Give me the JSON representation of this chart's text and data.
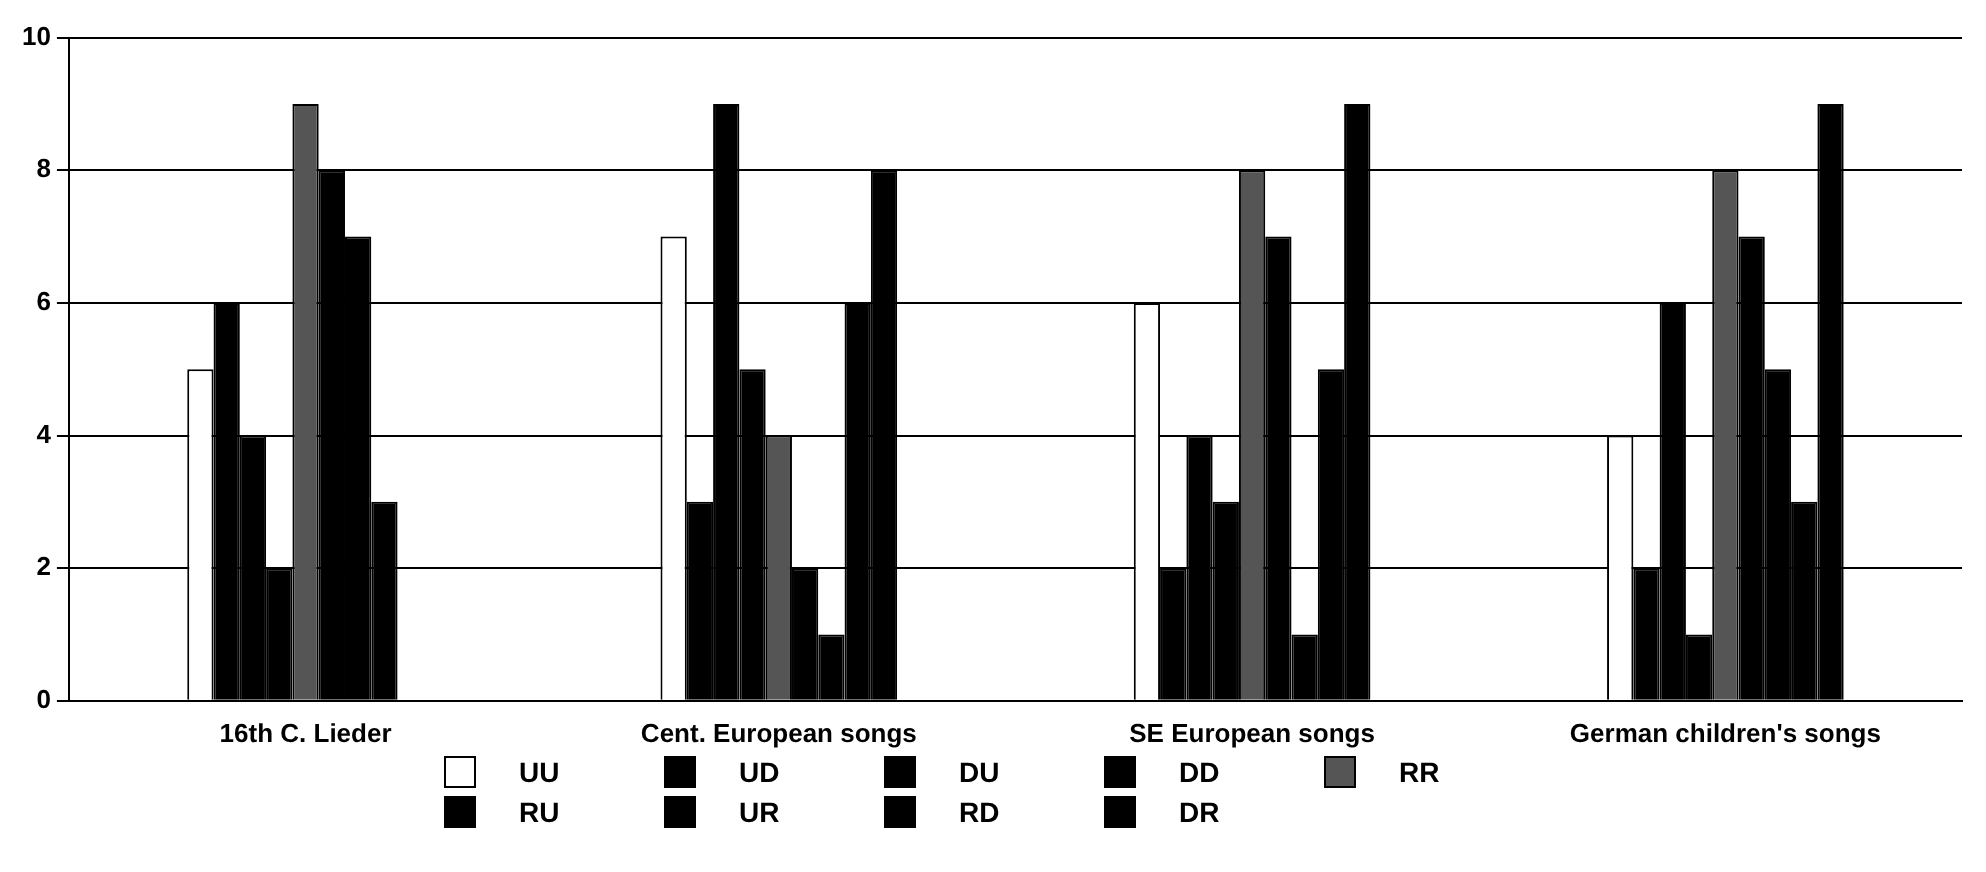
{
  "chart_data": {
    "type": "bar",
    "categories": [
      "16th C. Lieder",
      "Cent. European songs",
      "SE European songs",
      "German children's songs"
    ],
    "series": [
      {
        "name": "UU",
        "color": "#ffffff",
        "values": [
          5,
          7,
          6,
          4
        ]
      },
      {
        "name": "UD",
        "color": "#000000",
        "values": [
          6,
          3,
          2,
          2
        ]
      },
      {
        "name": "DU",
        "color": "#000000",
        "values": [
          4,
          9,
          4,
          6
        ]
      },
      {
        "name": "DD",
        "color": "#000000",
        "values": [
          2,
          5,
          3,
          1
        ]
      },
      {
        "name": "RR",
        "color": "#555555",
        "values": [
          9,
          4,
          8,
          8
        ]
      },
      {
        "name": "RU",
        "color": "#000000",
        "values": [
          8,
          2,
          7,
          7
        ]
      },
      {
        "name": "UR",
        "color": "#000000",
        "values": [
          7,
          1,
          1,
          5
        ]
      },
      {
        "name": "RD",
        "color": "#000000",
        "values": [
          3,
          6,
          5,
          3
        ]
      },
      {
        "name": "DR",
        "color": "#000000",
        "values": [
          0,
          8,
          9,
          9
        ]
      }
    ],
    "ylim": [
      0,
      10
    ],
    "yticks": [
      0,
      2,
      4,
      6,
      8,
      10
    ],
    "grid": "y",
    "legend": "bottom"
  }
}
